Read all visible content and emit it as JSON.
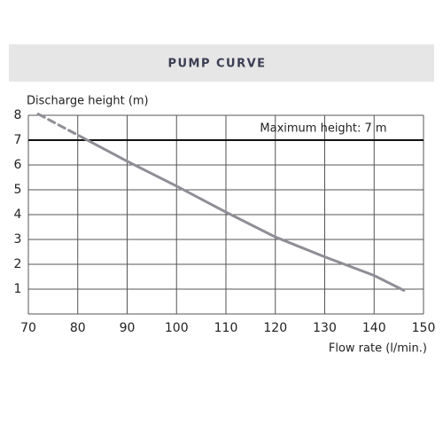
{
  "chart_data": {
    "type": "line",
    "title": "PUMP CURVE",
    "y_label": "Discharge height (m)",
    "x_label": "Flow rate (l/min.)",
    "xlim": [
      70,
      150
    ],
    "xticks": [
      70,
      80,
      90,
      100,
      110,
      120,
      130,
      140,
      150
    ],
    "ylim": [
      0,
      8
    ],
    "yticks": [
      1,
      2,
      3,
      4,
      5,
      6,
      7,
      8
    ],
    "grid": true,
    "reference_line": {
      "value": 7,
      "label": "Maximum height: 7 m",
      "color": "#111111"
    },
    "lines": [
      {
        "style": "dashed",
        "color": "#8f8e96",
        "x": [
          72,
          81
        ],
        "values": [
          8.05,
          7.1
        ]
      },
      {
        "style": "solid",
        "color": "#8f8e96",
        "x": [
          81,
          90,
          100,
          110,
          120,
          130,
          140,
          146
        ],
        "values": [
          7.1,
          6.15,
          5.15,
          4.1,
          3.1,
          2.3,
          1.55,
          0.95
        ]
      }
    ]
  }
}
